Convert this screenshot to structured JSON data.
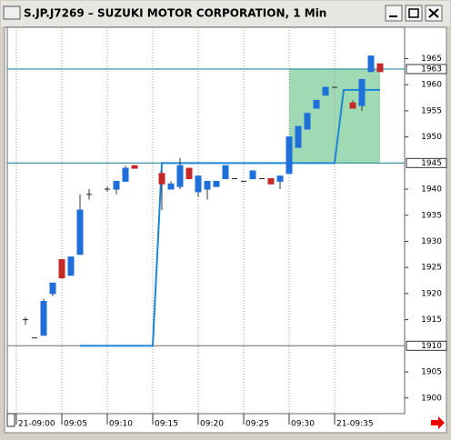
{
  "chart_data": {
    "type": "candlestick",
    "title": "S.JP.J7269 – SUZUKI MOTOR CORPORATION, 1 Min",
    "categories": [
      "21-09:00",
      null,
      null,
      null,
      null,
      "09:05",
      null,
      null,
      null,
      null,
      "09:10",
      null,
      null,
      null,
      null,
      "09:15",
      null,
      null,
      null,
      null,
      "09:20",
      null,
      null,
      null,
      null,
      "09:25",
      null,
      null,
      null,
      null,
      "09:30",
      null,
      null,
      null,
      null,
      "21-09:35",
      null,
      null,
      null,
      null,
      null,
      null,
      null
    ],
    "open": [
      null,
      1915,
      1911.5,
      1912,
      1920,
      1926.5,
      1923.5,
      1927.5,
      1939,
      null,
      1940,
      1940,
      1941.5,
      1944.5,
      null,
      null,
      1943,
      1940,
      1940.5,
      1944,
      1939.5,
      1940,
      1940.5,
      1942,
      1942,
      1941.5,
      1942,
      1942,
      1942,
      1941.5,
      1943,
      1948,
      1951.5,
      1955.5,
      1958,
      1959.5,
      null,
      1956.5,
      1956,
      1962.5,
      1964,
      null,
      null
    ],
    "high": [
      null,
      1915.5,
      1911.5,
      1919,
      1922,
      1926.5,
      1927,
      1939,
      1940,
      null,
      1940.5,
      1941.5,
      1944.5,
      1944.5,
      null,
      null,
      1943.5,
      1941.5,
      1946,
      1944,
      1942.5,
      1941.5,
      1941.5,
      1944.5,
      1942,
      1941.5,
      1943.5,
      1942,
      1942,
      1942.5,
      1950,
      1952,
      1954.5,
      1957,
      1959.5,
      1959.5,
      null,
      1957,
      1961,
      1965.5,
      1964,
      null,
      null
    ],
    "low": [
      null,
      1914,
      1911.5,
      1912,
      1919.5,
      1923,
      1923.5,
      1927.5,
      1938,
      null,
      1939.5,
      1939,
      1941.5,
      1944,
      null,
      null,
      1936,
      1940,
      1940,
      1942,
      1938.5,
      1938,
      1940.5,
      1942,
      1942,
      1941.5,
      1942,
      1942,
      1941,
      1940,
      1943,
      1948,
      1951.5,
      1955.5,
      1958,
      1959.5,
      null,
      1955.5,
      1955,
      1962.5,
      1962.5,
      null,
      null
    ],
    "close": [
      null,
      1915,
      1911.5,
      1918.5,
      1922,
      1923,
      1927,
      1936,
      1939,
      null,
      1940,
      1941.5,
      1944,
      1944,
      null,
      null,
      1941,
      1941,
      1944.5,
      1942,
      1942.5,
      1941.5,
      1941.5,
      1944.5,
      1942,
      1941.5,
      1943.5,
      1942,
      1941,
      1942.5,
      1950,
      1952,
      1954.5,
      1957,
      1959.5,
      1959.5,
      null,
      1955.5,
      1961,
      1965.5,
      1962.5,
      null,
      null
    ],
    "up_color": "#1e6fd9",
    "down_color": "#c62828",
    "line": {
      "color": "#1c86d6",
      "values": [
        null,
        null,
        null,
        null,
        null,
        null,
        null,
        1910,
        1910,
        1910,
        1910,
        1910,
        1910,
        1910,
        1910,
        1910,
        1945,
        1945,
        1945,
        1945,
        1945,
        1945,
        1945,
        1945,
        1945,
        1945,
        1945,
        1945,
        1945,
        1945,
        1945,
        1945,
        1945,
        1945,
        1945,
        1945,
        1959,
        1959,
        1959,
        1959,
        1959,
        null,
        null
      ]
    },
    "levels": [
      {
        "value": 1963,
        "color": "#2a8a9a"
      },
      {
        "value": 1945,
        "color": "#2a8a9a"
      },
      {
        "value": 1910,
        "color": "#8a8a8a"
      }
    ],
    "zone": {
      "low": 1945,
      "high": 1963,
      "start": 30,
      "end": 40,
      "color": "#8fd4a8"
    },
    "ylim": [
      1897,
      1971
    ],
    "yticks": [
      1900,
      1905,
      1915,
      1920,
      1925,
      1930,
      1935,
      1940,
      1950,
      1955,
      1960,
      1965
    ]
  }
}
